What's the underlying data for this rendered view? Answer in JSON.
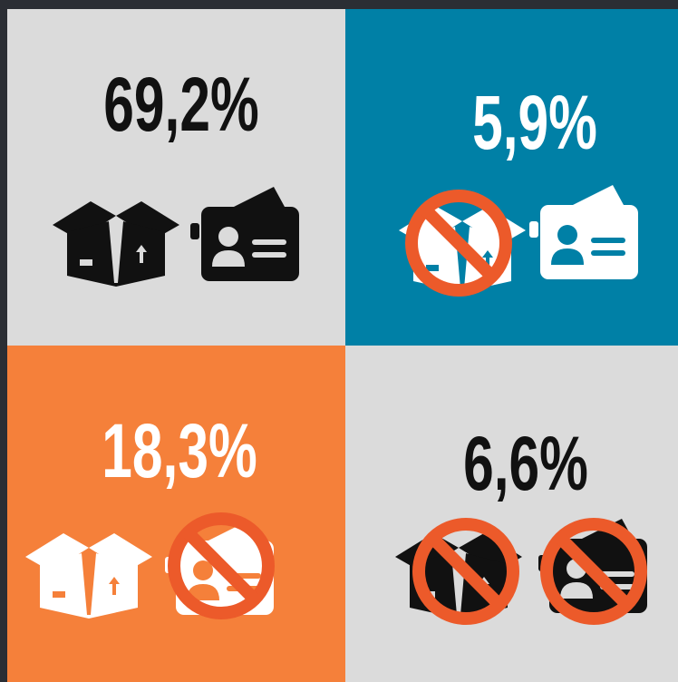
{
  "panels": [
    {
      "label": "69,2%"
    },
    {
      "label": "5,9%"
    },
    {
      "label": "18,3%"
    },
    {
      "label": "6,6%"
    }
  ]
}
